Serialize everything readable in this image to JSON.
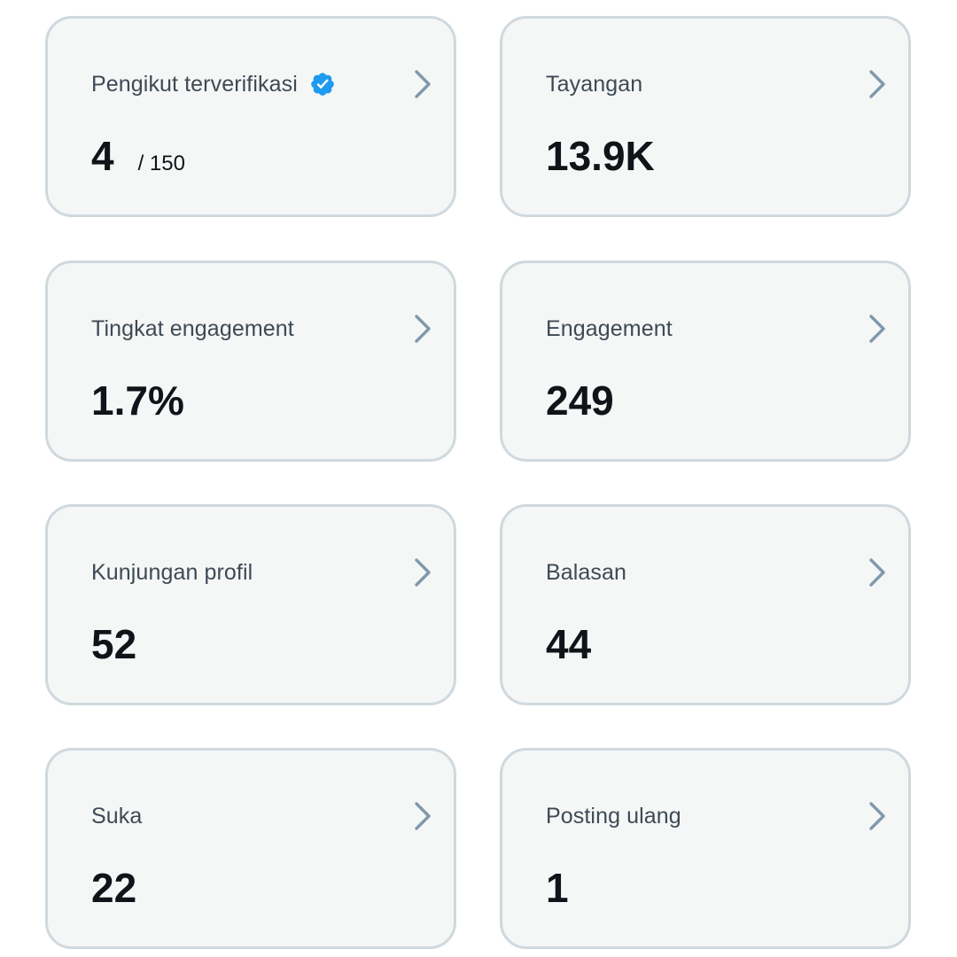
{
  "cards": [
    {
      "label": "Pengikut terverifikasi",
      "value": "4",
      "suffix": "/ 150",
      "icon": "verified-badge-icon"
    },
    {
      "label": "Tayangan",
      "value": "13.9K"
    },
    {
      "label": "Tingkat engagement",
      "value": "1.7%"
    },
    {
      "label": "Engagement",
      "value": "249"
    },
    {
      "label": "Kunjungan profil",
      "value": "52"
    },
    {
      "label": "Balasan",
      "value": "44"
    },
    {
      "label": "Suka",
      "value": "22"
    },
    {
      "label": "Posting ulang",
      "value": "1"
    }
  ],
  "colors": {
    "card_background": "#f5f6f6",
    "card_border": "#cfd9de",
    "label_text": "#3d4a55",
    "value_text": "#0f1419",
    "chevron": "#8098ad",
    "verified_badge": "#1d9bf0"
  }
}
